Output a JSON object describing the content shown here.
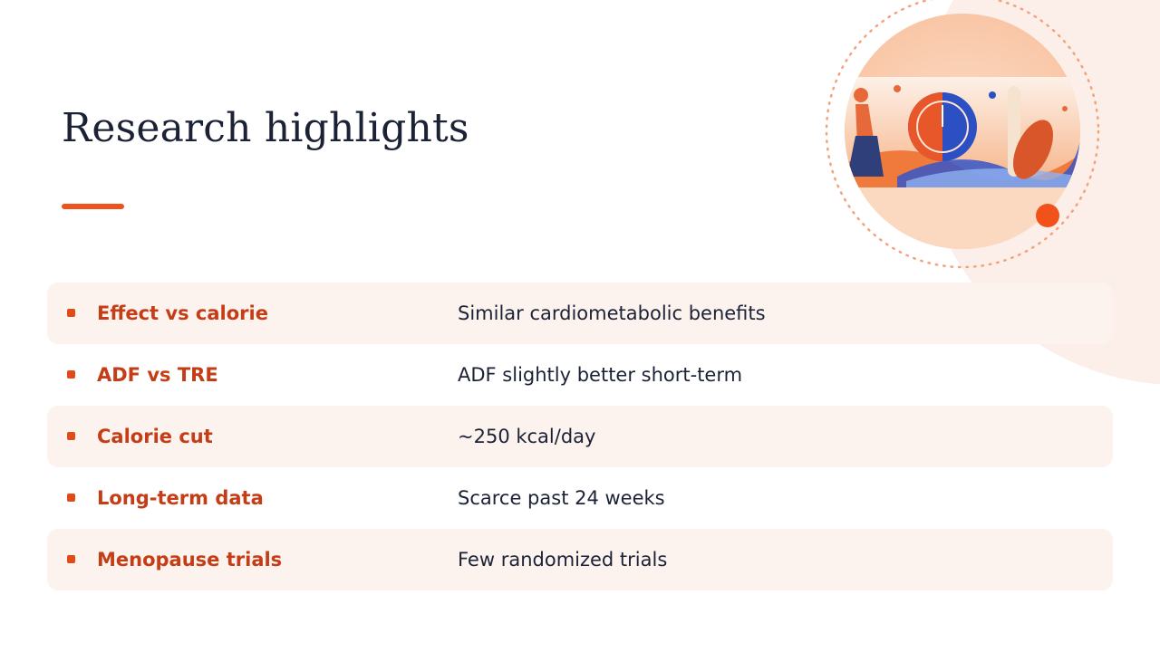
{
  "header": {
    "title": "Research highlights"
  },
  "table": {
    "rows": [
      [
        "Effect vs calorie",
        "Similar cardiometabolic benefits"
      ],
      [
        "ADF vs TRE",
        "ADF slightly better short-term"
      ],
      [
        "Calorie cut",
        "~250 kcal/day"
      ],
      [
        "Long-term data",
        "Scarce past 24 weeks"
      ],
      [
        "Menopause trials",
        "Few randomized trials"
      ]
    ]
  }
}
